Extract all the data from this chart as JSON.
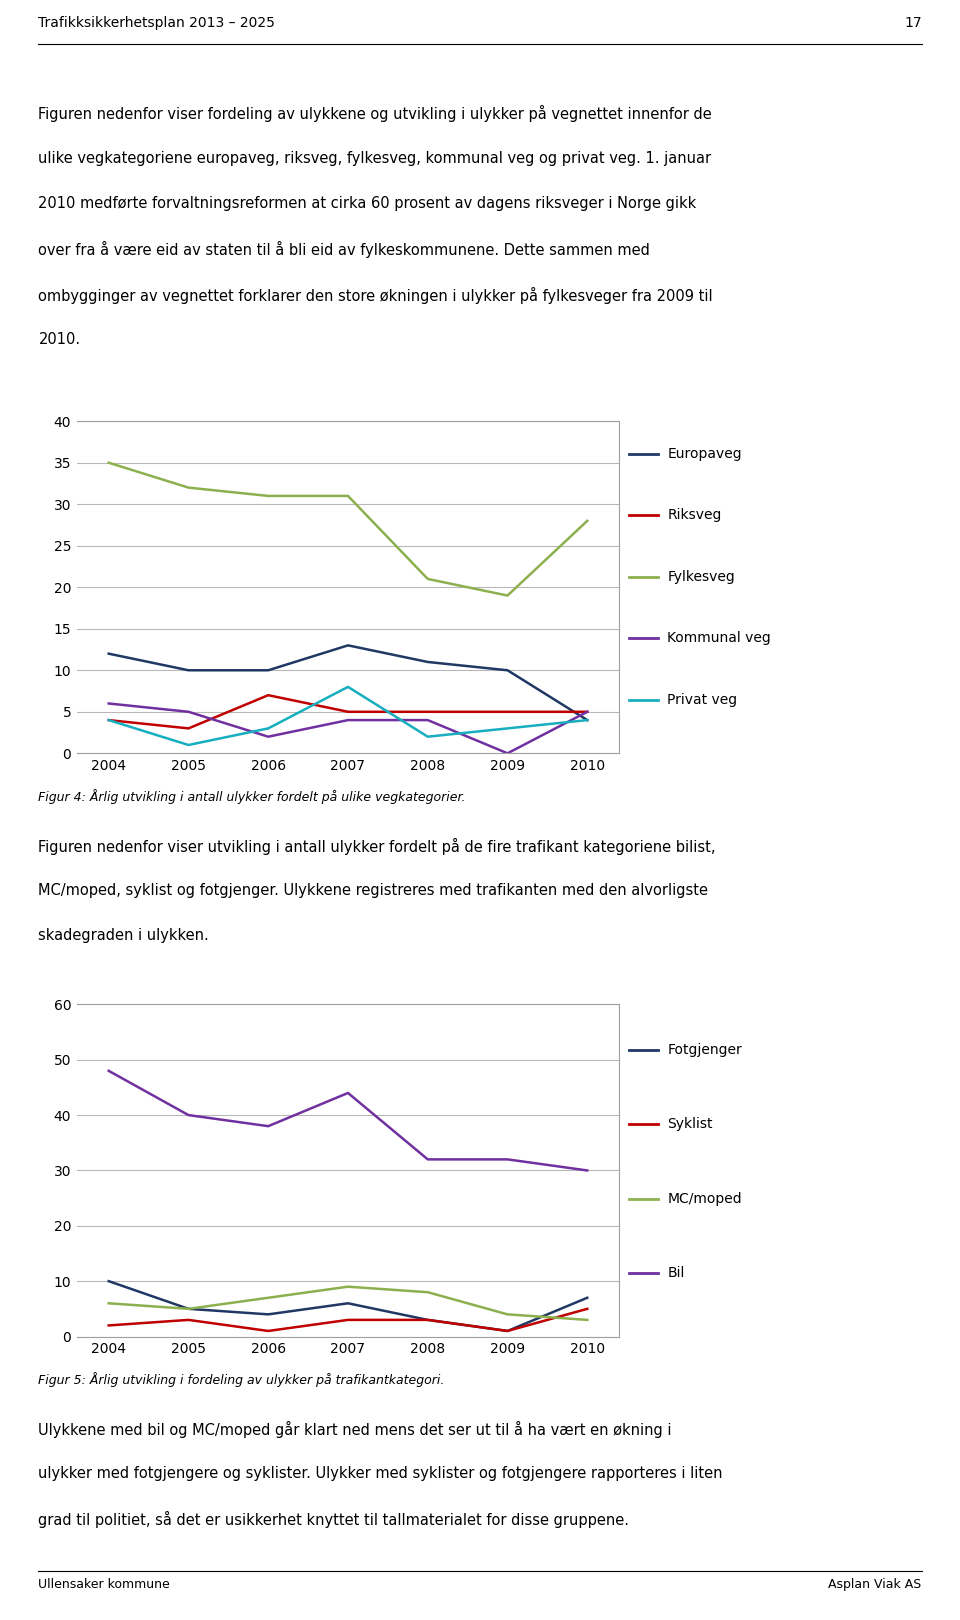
{
  "header_text": "Trafikksikkerhetsplan 2013 – 2025",
  "header_page": "17",
  "intro_lines": [
    "Figuren nedenfor viser fordeling av ulykkene og utvikling i ulykker på vegnettet innenfor de",
    "ulike vegkategoriene europaveg, riksveg, fylkesveg, kommunal veg og privat veg. 1. januar",
    "2010 medførte forvaltningsreformen at cirka 60 prosent av dagens riksveger i Norge gikk",
    "over fra å være eid av staten til å bli eid av fylkeskommunene. Dette sammen med",
    "ombygginger av vegnettet forklarer den store økningen i ulykker på fylkesveger fra 2009 til",
    "2010."
  ],
  "years": [
    2004,
    2005,
    2006,
    2007,
    2008,
    2009,
    2010
  ],
  "chart1": {
    "ylim": [
      0,
      40
    ],
    "yticks": [
      0,
      5,
      10,
      15,
      20,
      25,
      30,
      35,
      40
    ],
    "series": {
      "Europaveg": {
        "color": "#1F3864",
        "values": [
          12,
          10,
          10,
          13,
          11,
          10,
          4
        ]
      },
      "Riksveg": {
        "color": "#C00000",
        "values": [
          4,
          3,
          7,
          5,
          5,
          5,
          5
        ]
      },
      "Fylkesveg": {
        "color": "#8DB04E",
        "values": [
          35,
          32,
          31,
          31,
          21,
          19,
          28
        ]
      },
      "Kommunal veg": {
        "color": "#7030A0",
        "values": [
          6,
          5,
          2,
          4,
          4,
          0,
          5
        ]
      },
      "Privat veg": {
        "color": "#17AEBF",
        "values": [
          4,
          1,
          3,
          8,
          2,
          3,
          4
        ]
      }
    },
    "caption": "Figur 4: Årlig utvikling i antall ulykker fordelt på ulike vegkategorier."
  },
  "middle_lines": [
    "Figuren nedenfor viser utvikling i antall ulykker fordelt på de fire trafikant kategoriene bilist,",
    "MC/moped, syklist og fotgjenger. Ulykkene registreres med trafikanten med den alvorligste",
    "skadegraden i ulykken."
  ],
  "chart2": {
    "ylim": [
      0,
      60
    ],
    "yticks": [
      0,
      10,
      20,
      30,
      40,
      50,
      60
    ],
    "series": {
      "Fotgjenger": {
        "color": "#1F3864",
        "values": [
          10,
          5,
          4,
          6,
          3,
          1,
          7
        ]
      },
      "Syklist": {
        "color": "#C00000",
        "values": [
          2,
          3,
          1,
          3,
          3,
          1,
          5
        ]
      },
      "MC/moped": {
        "color": "#8DB04E",
        "values": [
          6,
          5,
          7,
          9,
          8,
          4,
          3
        ]
      },
      "Bil": {
        "color": "#7030A0",
        "values": [
          48,
          40,
          38,
          44,
          32,
          32,
          30
        ]
      }
    },
    "caption": "Figur 5: Årlig utvikling i fordeling av ulykker på trafikantkategori."
  },
  "bottom_lines": [
    "Ulykkene med bil og MC/moped går klart ned mens det ser ut til å ha vært en økning i",
    "ulykker med fotgjengere og syklister. Ulykker med syklister og fotgjengere rapporteres i liten",
    "grad til politiet, så det er usikkerhet knyttet til tallmaterialet for disse gruppene."
  ],
  "footer_left": "Ullensaker kommune",
  "footer_right": "Asplan Viak AS",
  "bg_color": "#FFFFFF",
  "text_color": "#000000",
  "grid_color": "#B8B8B8",
  "chart_border": "#A0A0A0",
  "font_size_body": 10.5,
  "font_size_axis": 10,
  "font_size_caption": 9,
  "font_size_header": 10,
  "font_size_footer": 9
}
